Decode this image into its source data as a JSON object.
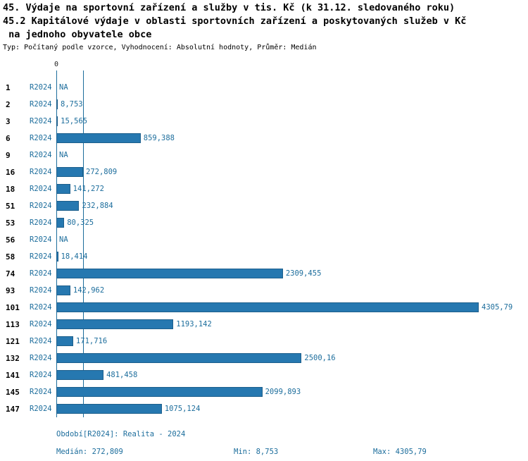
{
  "title": {
    "line1": "45. Výdaje na sportovní zařízení a služby v tis. Kč (k 31.12. sledovaného roku)",
    "line2": "45.2 Kapitálové výdaje v oblasti sportovních zařízení a poskytovaných služeb v Kč",
    "line3": " na jednoho obyvatele obce",
    "subtitle": "Typ: Počítaný podle vzorce, Vyhodnocení: Absolutní hodnoty, Průměr: Medián"
  },
  "chart_data": {
    "type": "bar",
    "orientation": "horizontal",
    "axis_zero_label": "0",
    "period_label": "R2024",
    "xlim": [
      0,
      4305.79
    ],
    "median_value": 272.809,
    "max_value": 4305.79,
    "rows": [
      {
        "id": "1",
        "value_label": "NA",
        "value": null
      },
      {
        "id": "2",
        "value_label": "8,753",
        "value": 8.753
      },
      {
        "id": "3",
        "value_label": "15,565",
        "value": 15.565
      },
      {
        "id": "6",
        "value_label": "859,388",
        "value": 859.388
      },
      {
        "id": "9",
        "value_label": "NA",
        "value": null
      },
      {
        "id": "16",
        "value_label": "272,809",
        "value": 272.809
      },
      {
        "id": "18",
        "value_label": "141,272",
        "value": 141.272
      },
      {
        "id": "51",
        "value_label": "232,884",
        "value": 232.884
      },
      {
        "id": "53",
        "value_label": "80,325",
        "value": 80.325
      },
      {
        "id": "56",
        "value_label": "NA",
        "value": null
      },
      {
        "id": "58",
        "value_label": "18,414",
        "value": 18.414
      },
      {
        "id": "74",
        "value_label": "2309,455",
        "value": 2309.455
      },
      {
        "id": "93",
        "value_label": "142,962",
        "value": 142.962
      },
      {
        "id": "101",
        "value_label": "4305,79",
        "value": 4305.79
      },
      {
        "id": "113",
        "value_label": "1193,142",
        "value": 1193.142
      },
      {
        "id": "121",
        "value_label": "171,716",
        "value": 171.716
      },
      {
        "id": "132",
        "value_label": "2500,16",
        "value": 2500.16
      },
      {
        "id": "141",
        "value_label": "481,458",
        "value": 481.458
      },
      {
        "id": "145",
        "value_label": "2099,893",
        "value": 2099.893
      },
      {
        "id": "147",
        "value_label": "1075,124",
        "value": 1075.124
      }
    ]
  },
  "footer": {
    "period": "Období[R2024]: Realita - 2024",
    "median": "Medián: 272,809",
    "min": "Min: 8,753",
    "max": "Max: 4305,79"
  },
  "colors": {
    "bar_fill": "#2678b0",
    "bar_border": "#1d5f8c",
    "accent_text": "#1c6d9c",
    "title_text": "#000000"
  }
}
